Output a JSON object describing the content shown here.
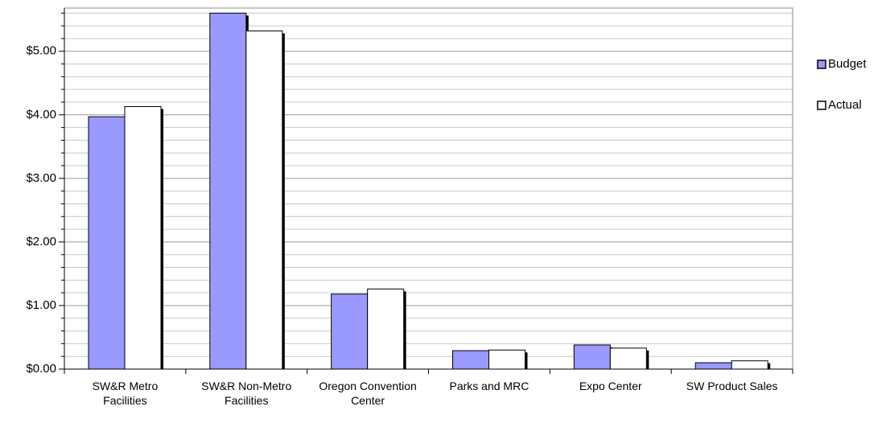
{
  "chart_data": {
    "type": "bar",
    "categories": [
      "SW&R Metro Facilities",
      "SW&R Non-Metro Facilities",
      "Oregon Convention Center",
      "Parks and MRC",
      "Expo Center",
      "SW Product Sales"
    ],
    "series": [
      {
        "name": "Budget",
        "color": "#9999ff",
        "values": [
          3.97,
          5.6,
          1.18,
          0.29,
          0.38,
          0.1
        ]
      },
      {
        "name": "Actual",
        "color": "#ffffff",
        "values": [
          4.13,
          5.32,
          1.26,
          0.3,
          0.33,
          0.13
        ]
      }
    ],
    "ylim": [
      0,
      5.68
    ],
    "yticks": [
      {
        "value": 0,
        "label": "$0.00"
      },
      {
        "value": 1,
        "label": "$1.00"
      },
      {
        "value": 2,
        "label": "$2.00"
      },
      {
        "value": 3,
        "label": "$3.00"
      },
      {
        "value": 4,
        "label": "$4.00"
      },
      {
        "value": 5,
        "label": "$5.00"
      }
    ],
    "minor_yticks": [
      0.2,
      0.4,
      0.6,
      0.8,
      1.2,
      1.4,
      1.6,
      1.8,
      2.2,
      2.4,
      2.6,
      2.8,
      3.2,
      3.4,
      3.6,
      3.8,
      4.2,
      4.4,
      4.6,
      4.8,
      5.2,
      5.4,
      5.6
    ],
    "grid": true,
    "legend": "right"
  }
}
